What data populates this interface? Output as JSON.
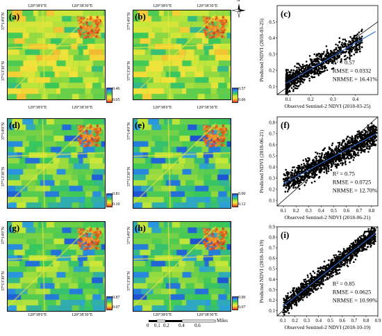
{
  "coords": {
    "lon1": "120°38'0\"E",
    "lon2": "120°38'30\"E",
    "lat1": "37°14'0\"N",
    "lat2": "37°13'30\"N"
  },
  "maps": [
    {
      "id": "a",
      "label": "(a)",
      "cbar_max": "0.46",
      "cbar_min": "0.05"
    },
    {
      "id": "b",
      "label": "(b)",
      "cbar_max": "0.57",
      "cbar_min": "0.06"
    },
    {
      "id": "d",
      "label": "(d)",
      "cbar_max": "0.81",
      "cbar_min": "0.10"
    },
    {
      "id": "e",
      "label": "(e)",
      "cbar_max": "0.90",
      "cbar_min": "0.12"
    },
    {
      "id": "g",
      "label": "(g)",
      "cbar_max": "0.87",
      "cbar_min": "0.07"
    },
    {
      "id": "h",
      "label": "(h)",
      "cbar_max": "0.90",
      "cbar_min": "0.07"
    }
  ],
  "scalebar": {
    "ticks": [
      "0",
      "0.1",
      "0.2",
      "0.4",
      "0.6"
    ],
    "unit": "Miles"
  },
  "compass": {
    "north": "N"
  },
  "chart_data": [
    {
      "type": "scatter",
      "panel": "(c)",
      "xlabel": "Observed Sentinel-2 NDVI (2018-03-25)",
      "ylabel": "Predicted NDVI (2018-03-25)",
      "xlim": [
        0.05,
        0.5
      ],
      "ylim": [
        0.05,
        0.6
      ],
      "xticks": [
        "0.1",
        "0.2",
        "0.3",
        "0.4"
      ],
      "yticks": [
        "0.1",
        "0.2",
        "0.3",
        "0.4",
        "0.5"
      ],
      "stats": {
        "r2": "R² = 0.57",
        "rmse": "RMSE = 0.0332",
        "nrmse": "NRMSE = 16.41%"
      },
      "fit": {
        "x": [
          0.09,
          0.49
        ],
        "y": [
          0.12,
          0.44
        ]
      }
    },
    {
      "type": "scatter",
      "panel": "(f)",
      "xlabel": "Observed Sentinel-2 NDVI (2018-06-21)",
      "ylabel": "Predicted NDVI (2018-06-21)",
      "xlim": [
        0.05,
        0.85
      ],
      "ylim": [
        0.05,
        0.85
      ],
      "xticks": [
        "0.1",
        "0.2",
        "0.3",
        "0.4",
        "0.5",
        "0.6",
        "0.7",
        "0.8"
      ],
      "yticks": [
        "0.1",
        "0.2",
        "0.3",
        "0.4",
        "0.5",
        "0.6",
        "0.7",
        "0.8"
      ],
      "stats": {
        "r2": "R² = 0.75",
        "rmse": "RMSE = 0.0725",
        "nrmse": "NRMSE = 12.70%"
      },
      "fit": {
        "x": [
          0.1,
          0.84
        ],
        "y": [
          0.25,
          0.7
        ]
      }
    },
    {
      "type": "scatter",
      "panel": "(i)",
      "xlabel": "Observed Sentinel-2 NDVI (2018-10-19)",
      "ylabel": "Predicted NDVI (2018-10-19)",
      "xlim": [
        0.05,
        0.9
      ],
      "ylim": [
        0.05,
        0.9
      ],
      "xticks": [
        "0.1",
        "0.2",
        "0.3",
        "0.4",
        "0.5",
        "0.6",
        "0.7",
        "0.8",
        "0.9"
      ],
      "yticks": [
        "0.1",
        "0.2",
        "0.3",
        "0.4",
        "0.5",
        "0.6",
        "0.7",
        "0.8",
        "0.9"
      ],
      "stats": {
        "r2": "R² = 0.85",
        "rmse": "RMSE = 0.0625",
        "nrmse": "NRMSE = 10.99%"
      },
      "fit": {
        "x": [
          0.1,
          0.88
        ],
        "y": [
          0.14,
          0.84
        ]
      }
    }
  ]
}
